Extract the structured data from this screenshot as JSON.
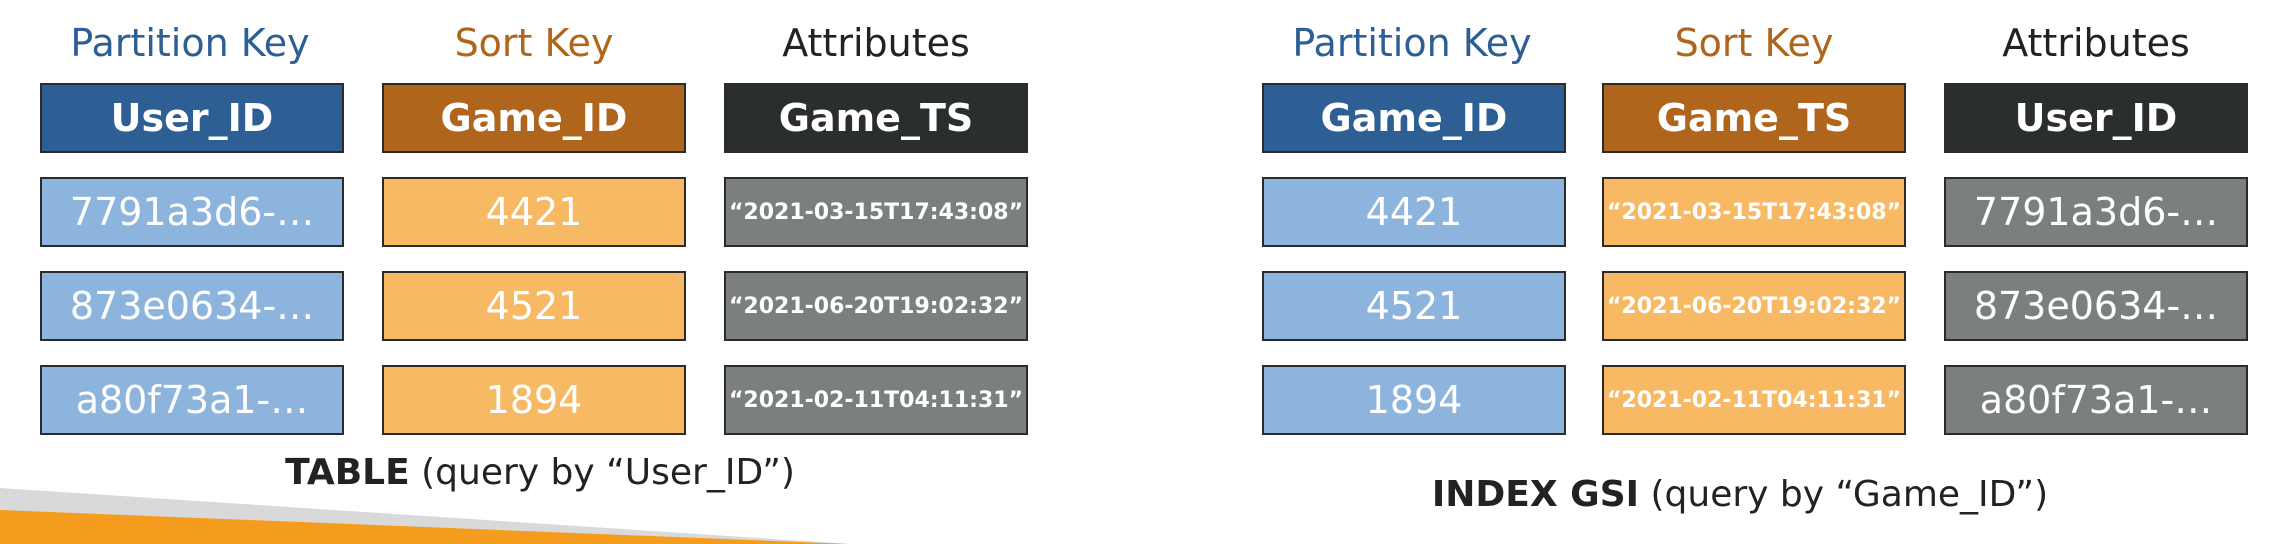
{
  "colors": {
    "blue_header": "#2d5f94",
    "blue_cell": "#8cb4dc",
    "orange_header": "#b0651c",
    "orange_cell": "#f7b964",
    "dark_header": "#2b2e2e",
    "gray_cell": "#7b7f7f",
    "blue_title": "#2d5f94",
    "orange_title": "#b0651c",
    "black_title": "#222222"
  },
  "table": {
    "titles": {
      "partition": "Partition Key",
      "sort": "Sort Key",
      "attributes": "Attributes"
    },
    "headers": {
      "partition": "User_ID",
      "sort": "Game_ID",
      "attributes": "Game_TS"
    },
    "rows": [
      {
        "partition": "7791a3d6-…",
        "sort": "4421",
        "attributes": "“2021-03-15T17:43:08”"
      },
      {
        "partition": "873e0634-…",
        "sort": "4521",
        "attributes": "“2021-06-20T19:02:32”"
      },
      {
        "partition": "a80f73a1-…",
        "sort": "1894",
        "attributes": "“2021-02-11T04:11:31”"
      }
    ],
    "caption_bold": "TABLE",
    "caption_rest": " (query by “User_ID”)"
  },
  "index": {
    "titles": {
      "partition": "Partition Key",
      "sort": "Sort Key",
      "attributes": "Attributes"
    },
    "headers": {
      "partition": "Game_ID",
      "sort": "Game_TS",
      "attributes": "User_ID"
    },
    "rows": [
      {
        "partition": "4421",
        "sort": "“2021-03-15T17:43:08”",
        "attributes": "7791a3d6-…"
      },
      {
        "partition": "4521",
        "sort": "“2021-06-20T19:02:32”",
        "attributes": "873e0634-…"
      },
      {
        "partition": "1894",
        "sort": "“2021-02-11T04:11:31”",
        "attributes": "a80f73a1-…"
      }
    ],
    "caption_bold": "INDEX GSI",
    "caption_rest": " (query by “Game_ID”)"
  }
}
